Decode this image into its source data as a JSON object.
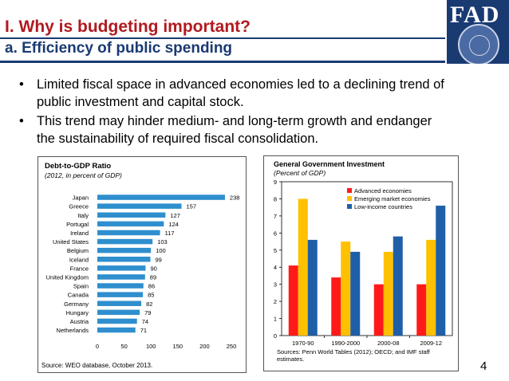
{
  "slide": {
    "title_line1": "I. Why is budgeting important?",
    "title_line2": "a. Efficiency of public spending",
    "logo_text": "FAD",
    "bullets": [
      "Limited fiscal space in advanced economies led to a declining trend of public investment  and capital stock.",
      "This trend may hinder medium- and long-term growth and endanger the sustainability of required fiscal consolidation."
    ],
    "bullet_glyph": "•",
    "page_number": "4"
  },
  "chart_data": [
    {
      "type": "bar",
      "orientation": "horizontal",
      "title": "Debt-to-GDP Ratio",
      "subtitle": "(2012, in percent of GDP)",
      "categories": [
        "Japan",
        "Greece",
        "Italy",
        "Portugal",
        "Ireland",
        "United States",
        "Belgium",
        "Iceland",
        "France",
        "United Kingdom",
        "Spain",
        "Canada",
        "Germany",
        "Hungary",
        "Austria",
        "Netherlands"
      ],
      "values": [
        238,
        157,
        127,
        124,
        117,
        103,
        100,
        99,
        90,
        89,
        86,
        85,
        82,
        79,
        74,
        71
      ],
      "xlim": [
        0,
        250
      ],
      "xticks": [
        0,
        50,
        100,
        150,
        200,
        250
      ],
      "bar_color": "#2f8fce",
      "grid": false,
      "source": "Source: WEO database, October 2013."
    },
    {
      "type": "bar",
      "title": "General Government  Investment",
      "subtitle": "(Percent of GDP)",
      "categories": [
        "1970-90",
        "1990-2000",
        "2000-08",
        "2009-12"
      ],
      "series": [
        {
          "name": "Advanced economies",
          "color": "#ff1a1a",
          "values": [
            4.1,
            3.4,
            3.0,
            3.0
          ]
        },
        {
          "name": "Emerging market economies",
          "color": "#ffc000",
          "values": [
            8.0,
            5.5,
            4.9,
            5.6
          ]
        },
        {
          "name": "Low-income countries",
          "color": "#1f5fa8",
          "values": [
            5.6,
            4.9,
            5.8,
            7.6
          ]
        }
      ],
      "ylim": [
        0,
        9
      ],
      "yticks": [
        0,
        1,
        2,
        3,
        4,
        5,
        6,
        7,
        8,
        9
      ],
      "legend_position": "top-right",
      "grid": false,
      "source": "Sources: Penn World Tables (2012); OECD; and IMF staff estimates."
    }
  ]
}
